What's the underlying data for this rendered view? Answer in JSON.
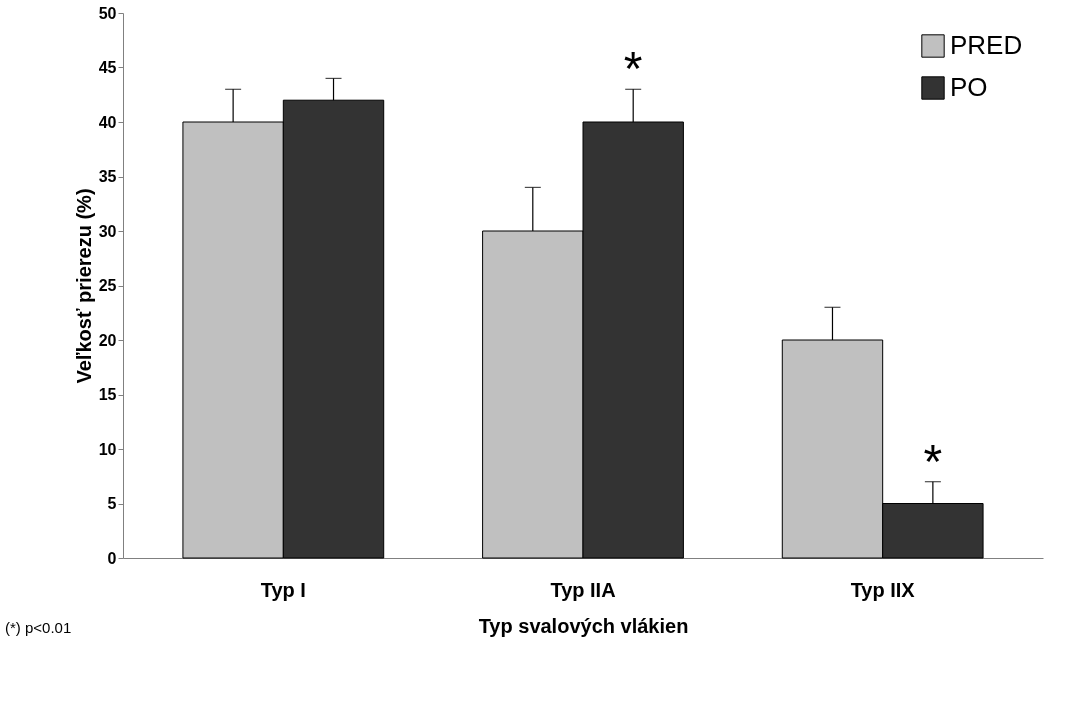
{
  "chart_data": {
    "type": "bar",
    "xlabel": "Typ svalových vlákien",
    "ylabel": "Veľkosť prierezu (%)",
    "categories": [
      "Typ I",
      "Typ IIA",
      "Typ IIX"
    ],
    "series": [
      {
        "name": "PRED",
        "color": "#c0c0c0",
        "values": [
          40,
          30,
          20
        ],
        "errors": [
          [
            40,
            43
          ],
          [
            30,
            34
          ],
          [
            20,
            23
          ]
        ]
      },
      {
        "name": "PO",
        "color": "#333333",
        "values": [
          42,
          40,
          5
        ],
        "errors": [
          [
            42,
            44
          ],
          [
            40,
            43
          ],
          [
            5,
            7
          ]
        ]
      }
    ],
    "ylim": [
      0,
      50
    ],
    "yticks": [
      0,
      5,
      10,
      15,
      20,
      25,
      30,
      35,
      40,
      45,
      50
    ],
    "grid": false,
    "legend": "top right",
    "annotations": [
      {
        "text": "*",
        "x": "Typ IIA",
        "y": 40
      },
      {
        "text": "*",
        "x": "Typ IIX",
        "y": 5
      },
      "(*) p<0.01"
    ]
  }
}
